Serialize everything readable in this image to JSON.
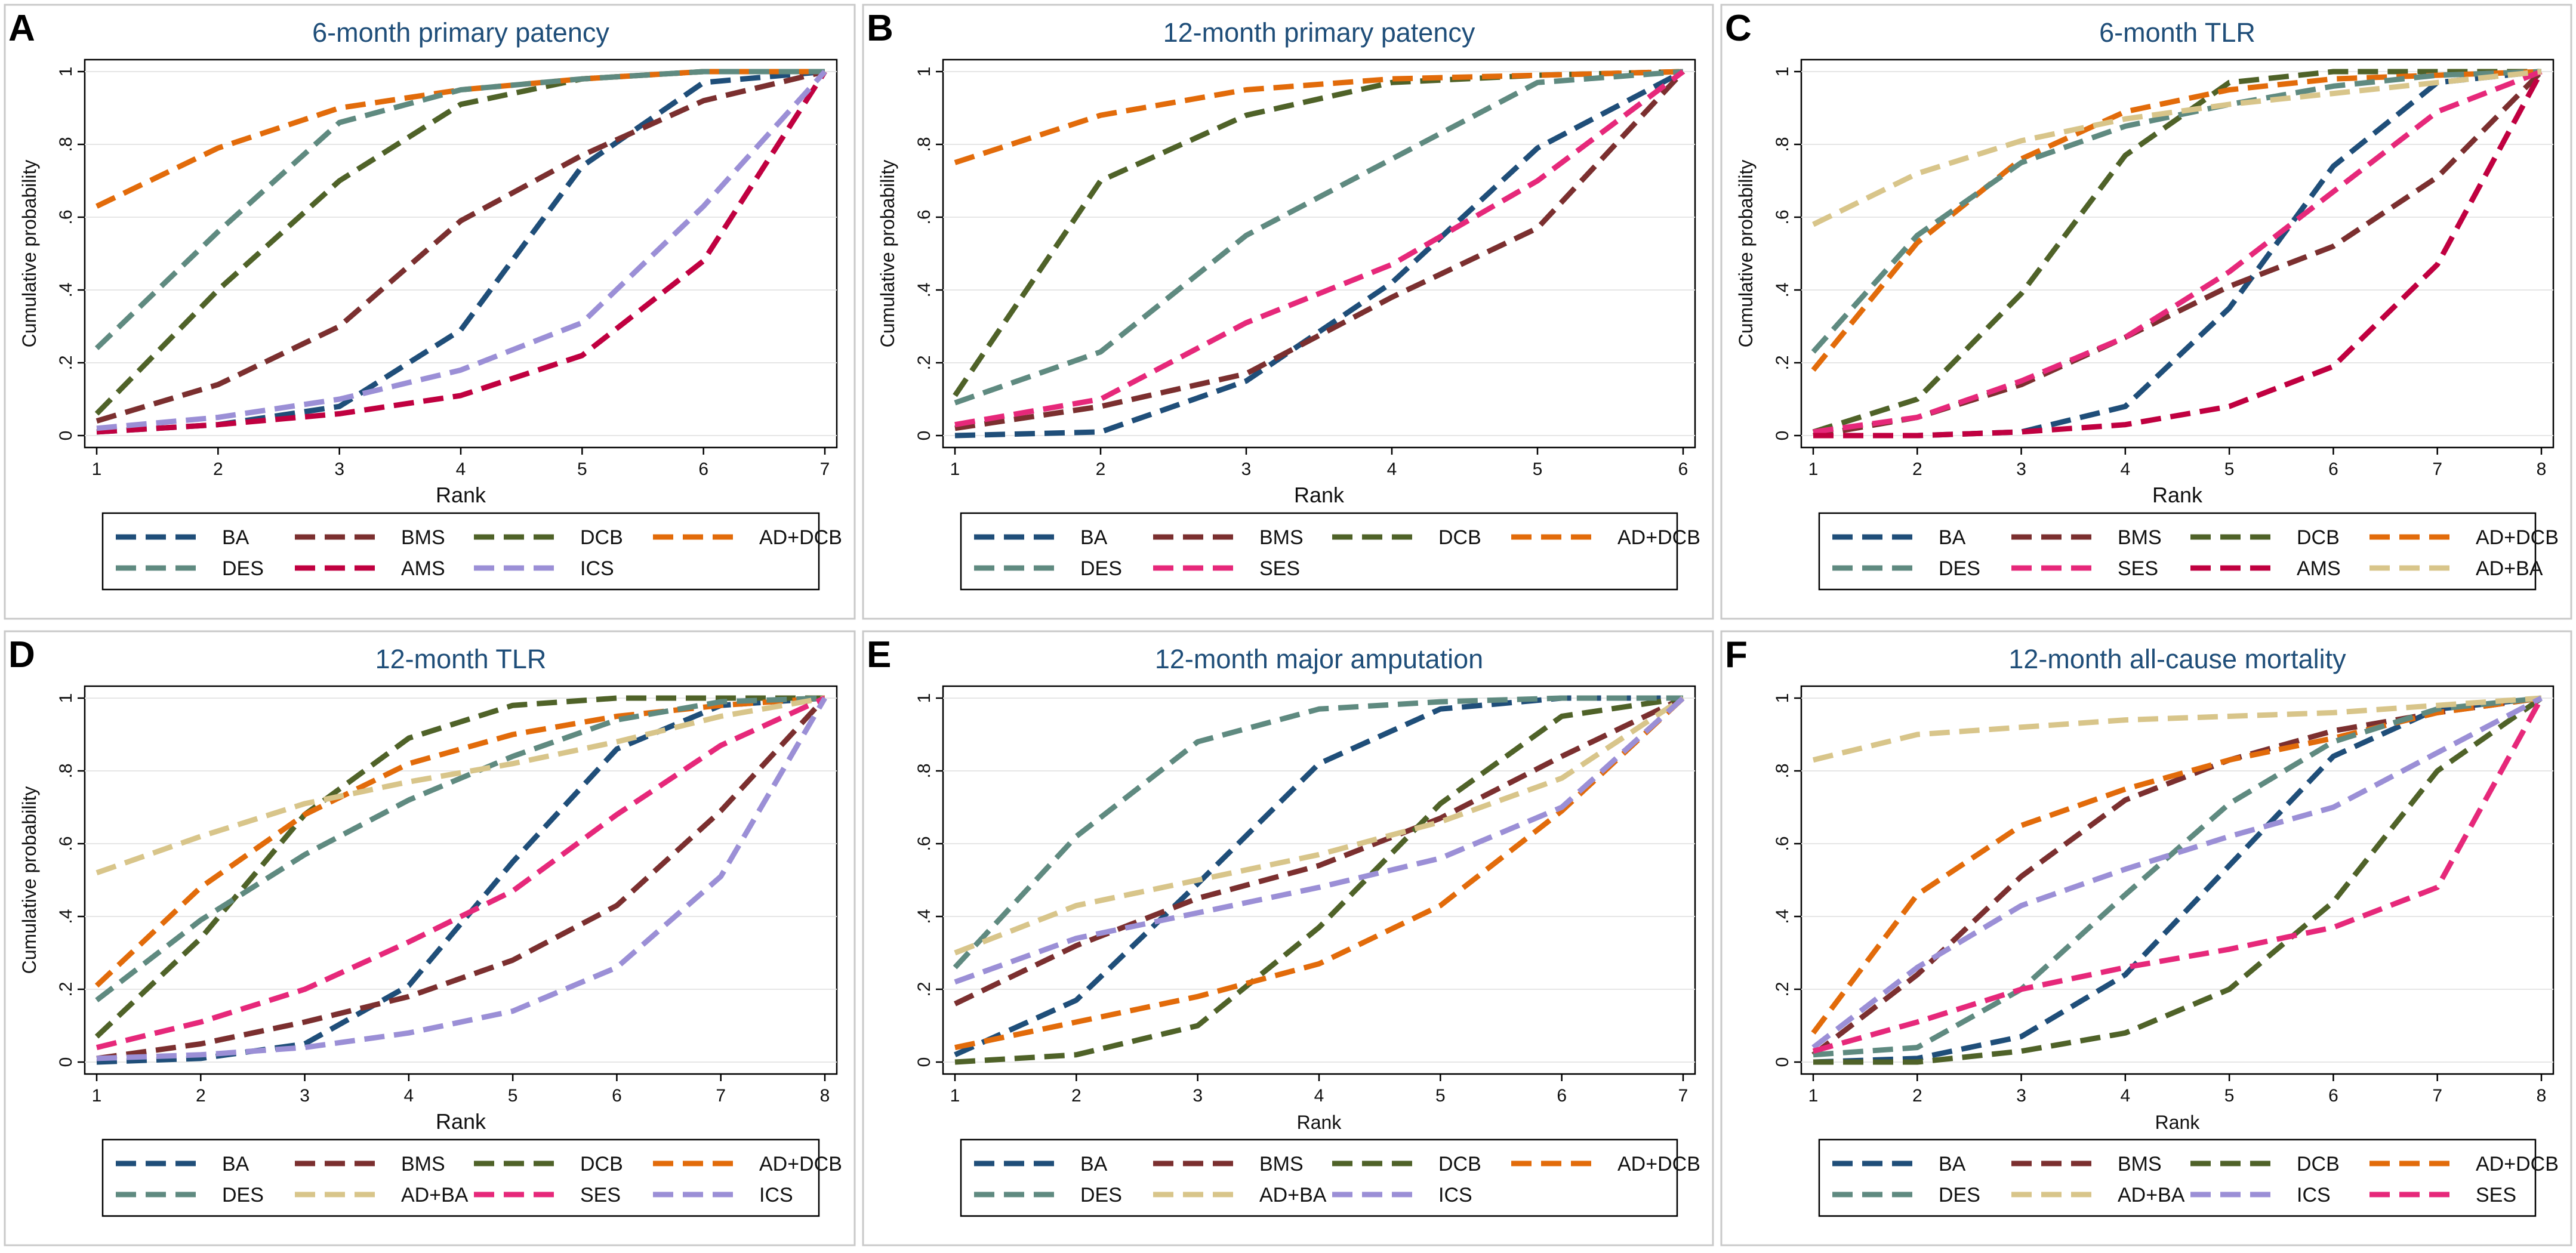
{
  "chart_data": [
    {
      "id": "A",
      "type": "line",
      "title": "6-month primary patency",
      "xlabel": "Rank",
      "ylabel": "Cumulative probability",
      "x": [
        1,
        2,
        3,
        4,
        5,
        6,
        7
      ],
      "ylim": [
        0,
        1
      ],
      "yticks": [
        "0",
        ".2",
        ".4",
        ".6",
        ".8",
        "1"
      ],
      "series": [
        {
          "name": "BA",
          "color": "#1f4e79",
          "values": [
            0.01,
            0.03,
            0.08,
            0.29,
            0.74,
            0.97,
            1.0
          ]
        },
        {
          "name": "BMS",
          "color": "#7b2f2f",
          "values": [
            0.04,
            0.14,
            0.3,
            0.59,
            0.77,
            0.92,
            1.0
          ]
        },
        {
          "name": "DCB",
          "color": "#4f6228",
          "values": [
            0.06,
            0.4,
            0.7,
            0.91,
            0.98,
            1.0,
            1.0
          ]
        },
        {
          "name": "AD+DCB",
          "color": "#e26b0a",
          "values": [
            0.63,
            0.79,
            0.9,
            0.95,
            0.98,
            1.0,
            1.0
          ]
        },
        {
          "name": "DES",
          "color": "#5f8a80",
          "values": [
            0.24,
            0.56,
            0.86,
            0.95,
            0.98,
            1.0,
            1.0
          ]
        },
        {
          "name": "AMS",
          "color": "#c00040",
          "values": [
            0.01,
            0.03,
            0.06,
            0.11,
            0.22,
            0.48,
            1.0
          ]
        },
        {
          "name": "ICS",
          "color": "#9b8fd6",
          "values": [
            0.02,
            0.05,
            0.1,
            0.18,
            0.31,
            0.63,
            1.0
          ]
        }
      ]
    },
    {
      "id": "B",
      "type": "line",
      "title": "12-month primary patency",
      "xlabel": "Rank",
      "ylabel": "Cumulative probability",
      "x": [
        1,
        2,
        3,
        4,
        5,
        6
      ],
      "ylim": [
        0,
        1
      ],
      "yticks": [
        "0",
        ".2",
        ".4",
        ".6",
        ".8",
        "1"
      ],
      "series": [
        {
          "name": "BA",
          "color": "#1f4e79",
          "values": [
            0.0,
            0.01,
            0.15,
            0.42,
            0.79,
            1.0
          ]
        },
        {
          "name": "BMS",
          "color": "#7b2f2f",
          "values": [
            0.02,
            0.08,
            0.17,
            0.38,
            0.57,
            1.0
          ]
        },
        {
          "name": "DCB",
          "color": "#4f6228",
          "values": [
            0.11,
            0.7,
            0.88,
            0.97,
            0.99,
            1.0
          ]
        },
        {
          "name": "AD+DCB",
          "color": "#e26b0a",
          "values": [
            0.75,
            0.88,
            0.95,
            0.98,
            0.99,
            1.0
          ]
        },
        {
          "name": "DES",
          "color": "#5f8a80",
          "values": [
            0.09,
            0.23,
            0.55,
            0.76,
            0.97,
            1.0
          ]
        },
        {
          "name": "SES",
          "color": "#e6287a",
          "values": [
            0.03,
            0.1,
            0.31,
            0.47,
            0.7,
            1.0
          ]
        }
      ]
    },
    {
      "id": "C",
      "type": "line",
      "title": "6-month TLR",
      "xlabel": "Rank",
      "ylabel": "Cumulative probability",
      "x": [
        1,
        2,
        3,
        4,
        5,
        6,
        7,
        8
      ],
      "ylim": [
        0,
        1
      ],
      "yticks": [
        "0",
        ".2",
        ".4",
        ".6",
        ".8",
        "1"
      ],
      "series": [
        {
          "name": "BA",
          "color": "#1f4e79",
          "values": [
            0.0,
            0.0,
            0.01,
            0.08,
            0.35,
            0.74,
            0.97,
            1.0
          ]
        },
        {
          "name": "BMS",
          "color": "#7b2f2f",
          "values": [
            0.0,
            0.05,
            0.14,
            0.27,
            0.41,
            0.52,
            0.71,
            1.0
          ]
        },
        {
          "name": "DCB",
          "color": "#4f6228",
          "values": [
            0.01,
            0.1,
            0.39,
            0.77,
            0.97,
            1.0,
            1.0,
            1.0
          ]
        },
        {
          "name": "AD+DCB",
          "color": "#e26b0a",
          "values": [
            0.18,
            0.53,
            0.76,
            0.89,
            0.95,
            0.98,
            0.99,
            1.0
          ]
        },
        {
          "name": "DES",
          "color": "#5f8a80",
          "values": [
            0.23,
            0.55,
            0.75,
            0.85,
            0.91,
            0.96,
            0.99,
            1.0
          ]
        },
        {
          "name": "SES",
          "color": "#e6287a",
          "values": [
            0.01,
            0.05,
            0.15,
            0.27,
            0.45,
            0.67,
            0.89,
            1.0
          ]
        },
        {
          "name": "AMS",
          "color": "#c00040",
          "values": [
            0.0,
            0.0,
            0.01,
            0.03,
            0.08,
            0.19,
            0.47,
            1.0
          ]
        },
        {
          "name": "AD+BA",
          "color": "#d8c58a",
          "values": [
            0.58,
            0.72,
            0.81,
            0.87,
            0.91,
            0.94,
            0.97,
            1.0
          ]
        }
      ]
    },
    {
      "id": "D",
      "type": "line",
      "title": "12-month TLR",
      "xlabel": "Rank",
      "ylabel": "Cumulative probability",
      "x": [
        1,
        2,
        3,
        4,
        5,
        6,
        7,
        8
      ],
      "ylim": [
        0,
        1
      ],
      "yticks": [
        "0",
        ".2",
        ".4",
        ".6",
        ".8",
        "1"
      ],
      "series": [
        {
          "name": "BA",
          "color": "#1f4e79",
          "values": [
            0.0,
            0.01,
            0.05,
            0.21,
            0.55,
            0.86,
            0.98,
            1.0
          ]
        },
        {
          "name": "BMS",
          "color": "#7b2f2f",
          "values": [
            0.01,
            0.05,
            0.11,
            0.18,
            0.28,
            0.43,
            0.69,
            1.0
          ]
        },
        {
          "name": "DCB",
          "color": "#4f6228",
          "values": [
            0.07,
            0.34,
            0.68,
            0.89,
            0.98,
            1.0,
            1.0,
            1.0
          ]
        },
        {
          "name": "AD+DCB",
          "color": "#e26b0a",
          "values": [
            0.21,
            0.48,
            0.68,
            0.82,
            0.9,
            0.95,
            0.98,
            1.0
          ]
        },
        {
          "name": "DES",
          "color": "#5f8a80",
          "values": [
            0.17,
            0.39,
            0.57,
            0.72,
            0.84,
            0.94,
            0.99,
            1.0
          ]
        },
        {
          "name": "AD+BA",
          "color": "#d8c58a",
          "values": [
            0.52,
            0.62,
            0.71,
            0.77,
            0.82,
            0.88,
            0.95,
            1.0
          ]
        },
        {
          "name": "SES",
          "color": "#e6287a",
          "values": [
            0.04,
            0.11,
            0.2,
            0.33,
            0.47,
            0.68,
            0.87,
            1.0
          ]
        },
        {
          "name": "ICS",
          "color": "#9b8fd6",
          "values": [
            0.01,
            0.02,
            0.04,
            0.08,
            0.14,
            0.26,
            0.51,
            1.0
          ]
        }
      ]
    },
    {
      "id": "E",
      "type": "line",
      "title": "12-month major amputation",
      "xlabel": "Rank",
      "ylabel": "",
      "x": [
        1,
        2,
        3,
        4,
        5,
        6,
        7
      ],
      "ylim": [
        0,
        1
      ],
      "yticks": [
        "0",
        ".2",
        ".4",
        ".6",
        ".8",
        "1"
      ],
      "series": [
        {
          "name": "BA",
          "color": "#1f4e79",
          "values": [
            0.02,
            0.17,
            0.49,
            0.82,
            0.97,
            1.0,
            1.0
          ]
        },
        {
          "name": "BMS",
          "color": "#7b2f2f",
          "values": [
            0.16,
            0.32,
            0.45,
            0.54,
            0.67,
            0.84,
            1.0
          ]
        },
        {
          "name": "DCB",
          "color": "#4f6228",
          "values": [
            0.0,
            0.02,
            0.1,
            0.37,
            0.71,
            0.95,
            1.0
          ]
        },
        {
          "name": "AD+DCB",
          "color": "#e26b0a",
          "values": [
            0.04,
            0.11,
            0.18,
            0.27,
            0.43,
            0.69,
            1.0
          ]
        },
        {
          "name": "DES",
          "color": "#5f8a80",
          "values": [
            0.26,
            0.62,
            0.88,
            0.97,
            0.99,
            1.0,
            1.0
          ]
        },
        {
          "name": "AD+BA",
          "color": "#d8c58a",
          "values": [
            0.3,
            0.43,
            0.5,
            0.57,
            0.66,
            0.78,
            1.0
          ]
        },
        {
          "name": "ICS",
          "color": "#9b8fd6",
          "values": [
            0.22,
            0.34,
            0.41,
            0.48,
            0.56,
            0.7,
            1.0
          ]
        }
      ]
    },
    {
      "id": "F",
      "type": "line",
      "title": "12-month all-cause mortality",
      "xlabel": "Rank",
      "ylabel": "",
      "x": [
        1,
        2,
        3,
        4,
        5,
        6,
        7,
        8
      ],
      "ylim": [
        0,
        1
      ],
      "yticks": [
        "0",
        ".2",
        ".4",
        ".6",
        ".8",
        "1"
      ],
      "series": [
        {
          "name": "BA",
          "color": "#1f4e79",
          "values": [
            0.0,
            0.01,
            0.07,
            0.24,
            0.54,
            0.84,
            0.97,
            1.0
          ]
        },
        {
          "name": "BMS",
          "color": "#7b2f2f",
          "values": [
            0.02,
            0.24,
            0.51,
            0.72,
            0.83,
            0.91,
            0.96,
            1.0
          ]
        },
        {
          "name": "DCB",
          "color": "#4f6228",
          "values": [
            0.0,
            0.0,
            0.03,
            0.08,
            0.2,
            0.44,
            0.8,
            1.0
          ]
        },
        {
          "name": "AD+DCB",
          "color": "#e26b0a",
          "values": [
            0.08,
            0.46,
            0.65,
            0.75,
            0.83,
            0.89,
            0.96,
            1.0
          ]
        },
        {
          "name": "DES",
          "color": "#5f8a80",
          "values": [
            0.02,
            0.04,
            0.2,
            0.46,
            0.71,
            0.88,
            0.97,
            1.0
          ]
        },
        {
          "name": "AD+BA",
          "color": "#d8c58a",
          "values": [
            0.83,
            0.9,
            0.92,
            0.94,
            0.95,
            0.96,
            0.98,
            1.0
          ]
        },
        {
          "name": "ICS",
          "color": "#9b8fd6",
          "values": [
            0.04,
            0.26,
            0.43,
            0.53,
            0.62,
            0.7,
            0.85,
            1.0
          ]
        },
        {
          "name": "SES",
          "color": "#e6287a",
          "values": [
            0.03,
            0.11,
            0.2,
            0.26,
            0.31,
            0.37,
            0.48,
            1.0
          ]
        }
      ]
    }
  ]
}
